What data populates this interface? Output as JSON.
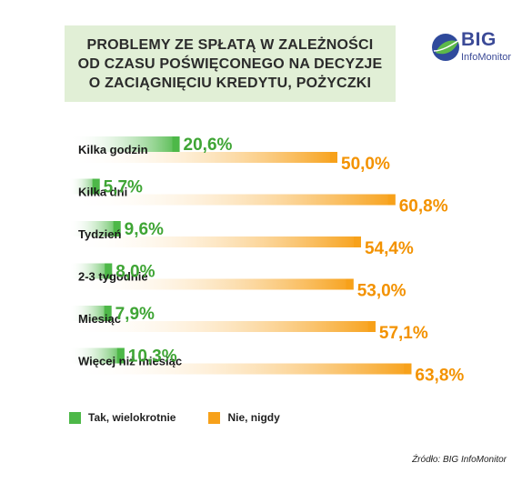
{
  "title": {
    "line1": "PROBLEMY ZE SPŁATĄ W ZALEŻNOŚCI",
    "line2": "OD CZASU POŚWIĘCONEGO NA DECYZJE",
    "line3": "O ZACIĄGNIĘCIU KREDYTU, POŻYCZKI"
  },
  "logo": {
    "name": "BIG",
    "sub": "InfoMonitor",
    "icon": "big-logo-icon"
  },
  "source": "Źródło: BIG InfoMonitor",
  "colors": {
    "green": "#4db848",
    "orange": "#f7a11a",
    "greenLabel": "#3fa535",
    "orangeLabel": "#f39200",
    "titleBg": "#e1efd6"
  },
  "chart_data": {
    "type": "bar",
    "orientation": "horizontal",
    "categories": [
      "Kilka godzin",
      "Kilka dni",
      "Tydzień",
      "2-3 tygodnie",
      "Miesiąc",
      "Więcej niż miesiąc"
    ],
    "series": [
      {
        "name": "Tak, wielokrotnie",
        "values": [
          20.6,
          5.7,
          9.6,
          8.0,
          7.9,
          10.3
        ],
        "labels": [
          "20,6%",
          "5,7%",
          "9,6%",
          "8,0%",
          "7,9%",
          "10,3%"
        ]
      },
      {
        "name": "Nie, nigdy",
        "values": [
          50.0,
          60.8,
          54.4,
          53.0,
          57.1,
          63.8
        ],
        "labels": [
          "50,0%",
          "60,8%",
          "54,4%",
          "53,0%",
          "57,1%",
          "63,8%"
        ]
      }
    ],
    "legend_position": "bottom-left",
    "grid": false
  }
}
